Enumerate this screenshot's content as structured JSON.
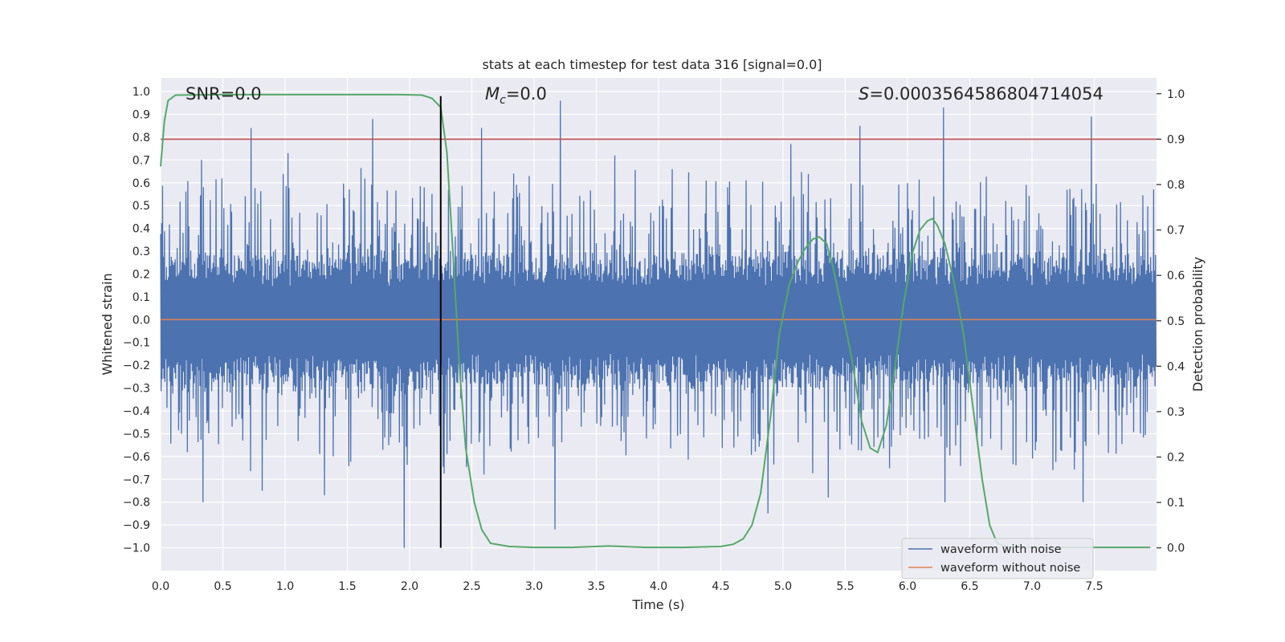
{
  "chart_data": {
    "type": "line",
    "title": "stats at each timestep for test data 316 [signal=0.0]",
    "xlabel": "Time (s)",
    "ylabel_left": "Whitened strain",
    "ylabel_right": "Detection probability",
    "xlim": [
      0.0,
      8.0
    ],
    "ylim_left": [
      -1.1,
      1.06
    ],
    "ylim_right": [
      -0.05,
      1.035
    ],
    "x_ticks": [
      0.0,
      0.5,
      1.0,
      1.5,
      2.0,
      2.5,
      3.0,
      3.5,
      4.0,
      4.5,
      5.0,
      5.5,
      6.0,
      6.5,
      7.0,
      7.5
    ],
    "x_tick_labels": [
      "0.0",
      "0.5",
      "1.0",
      "1.5",
      "2.0",
      "2.5",
      "3.0",
      "3.5",
      "4.0",
      "4.5",
      "5.0",
      "5.5",
      "6.0",
      "6.5",
      "7.0",
      "7.5"
    ],
    "y_left_ticks": [
      1.0,
      0.9,
      0.8,
      0.7,
      0.6,
      0.5,
      0.4,
      0.3,
      0.2,
      0.1,
      0.0,
      -0.1,
      -0.2,
      -0.3,
      -0.4,
      -0.5,
      -0.6,
      -0.7,
      -0.8,
      -0.9,
      -1.0
    ],
    "y_left_tick_labels": [
      "1.0",
      "0.9",
      "0.8",
      "0.7",
      "0.6",
      "0.5",
      "0.4",
      "0.3",
      "0.2",
      "0.1",
      "0.0",
      "−0.1",
      "−0.2",
      "−0.3",
      "−0.4",
      "−0.5",
      "−0.6",
      "−0.7",
      "−0.8",
      "−0.9",
      "−1.0"
    ],
    "y_right_ticks": [
      1.0,
      0.9,
      0.8,
      0.7,
      0.6,
      0.5,
      0.4,
      0.3,
      0.2,
      0.1,
      0.0
    ],
    "y_right_tick_labels": [
      "1.0",
      "0.9",
      "0.8",
      "0.7",
      "0.6",
      "0.5",
      "0.4",
      "0.3",
      "0.2",
      "0.1",
      "0.0"
    ],
    "grid": true,
    "annotations": {
      "snr_text": "SNR=0.0",
      "mc_symbol": "M",
      "mc_subscript": "c",
      "mc_value": "=0.0",
      "s_symbol": "S",
      "s_value": "=0.0003564586804714054"
    },
    "threshold": {
      "axis": "right",
      "value": 0.9,
      "color": "#c44e52"
    },
    "vertical_marker": {
      "x": 2.25,
      "y_from": -1.0,
      "y_to": 0.98,
      "color": "#000000"
    },
    "series": [
      {
        "name": "waveform with noise",
        "axis": "left",
        "color": "#4c72b0",
        "description_stats": {
          "n_samples": 2048,
          "core_band": [
            -0.35,
            0.35
          ],
          "max": 0.96,
          "min": -1.0
        },
        "peaks": [
          {
            "x": 0.33,
            "y": 0.7
          },
          {
            "x": 0.73,
            "y": 0.84
          },
          {
            "x": 1.02,
            "y": 0.73
          },
          {
            "x": 1.7,
            "y": 0.88
          },
          {
            "x": 2.58,
            "y": 0.84
          },
          {
            "x": 3.21,
            "y": 0.96
          },
          {
            "x": 3.65,
            "y": 0.72
          },
          {
            "x": 5.06,
            "y": 0.77
          },
          {
            "x": 5.62,
            "y": 0.85
          },
          {
            "x": 6.29,
            "y": 0.93
          },
          {
            "x": 7.48,
            "y": 0.89
          }
        ],
        "troughs": [
          {
            "x": 0.34,
            "y": -0.8
          },
          {
            "x": 0.82,
            "y": -0.75
          },
          {
            "x": 1.32,
            "y": -0.77
          },
          {
            "x": 1.96,
            "y": -1.0
          },
          {
            "x": 3.17,
            "y": -0.92
          },
          {
            "x": 4.88,
            "y": -0.85
          },
          {
            "x": 5.36,
            "y": -0.78
          },
          {
            "x": 6.3,
            "y": -0.8
          },
          {
            "x": 7.41,
            "y": -0.8
          }
        ]
      },
      {
        "name": "waveform without noise",
        "axis": "left",
        "color": "#dd8452",
        "x": [
          0.0,
          8.0
        ],
        "y": [
          0.0,
          0.0
        ]
      },
      {
        "name": "detection probability",
        "axis": "right",
        "color": "#55a868",
        "in_legend": false,
        "x": [
          0.0,
          0.03,
          0.06,
          0.12,
          0.5,
          1.0,
          1.5,
          1.9,
          2.1,
          2.18,
          2.25,
          2.3,
          2.35,
          2.4,
          2.45,
          2.52,
          2.58,
          2.65,
          2.8,
          3.0,
          3.3,
          3.6,
          3.9,
          4.2,
          4.5,
          4.6,
          4.68,
          4.75,
          4.82,
          4.9,
          4.97,
          5.05,
          5.12,
          5.18,
          5.24,
          5.29,
          5.35,
          5.4,
          5.47,
          5.55,
          5.63,
          5.7,
          5.76,
          5.83,
          5.9,
          5.97,
          6.04,
          6.1,
          6.16,
          6.2,
          6.24,
          6.3,
          6.37,
          6.45,
          6.53,
          6.6,
          6.66,
          6.72,
          6.8,
          7.0,
          7.5,
          7.95
        ],
        "y": [
          0.84,
          0.94,
          0.985,
          0.997,
          0.998,
          0.998,
          0.998,
          0.998,
          0.997,
          0.99,
          0.97,
          0.87,
          0.64,
          0.4,
          0.22,
          0.1,
          0.04,
          0.01,
          0.003,
          0.001,
          0.001,
          0.004,
          0.001,
          0.001,
          0.003,
          0.008,
          0.02,
          0.05,
          0.12,
          0.29,
          0.47,
          0.58,
          0.63,
          0.66,
          0.68,
          0.685,
          0.67,
          0.62,
          0.53,
          0.42,
          0.28,
          0.22,
          0.21,
          0.27,
          0.4,
          0.54,
          0.65,
          0.7,
          0.72,
          0.725,
          0.71,
          0.67,
          0.59,
          0.47,
          0.3,
          0.15,
          0.05,
          0.01,
          0.002,
          0.001,
          0.001,
          0.001
        ]
      }
    ],
    "legend": {
      "position": "lower-right",
      "entries": [
        {
          "label": "waveform with noise",
          "color": "#4c72b0"
        },
        {
          "label": "waveform without noise",
          "color": "#dd8452"
        }
      ]
    },
    "colors": {
      "axes_bg": "#eaeaf2",
      "grid": "#ffffff",
      "text": "#262626"
    }
  }
}
